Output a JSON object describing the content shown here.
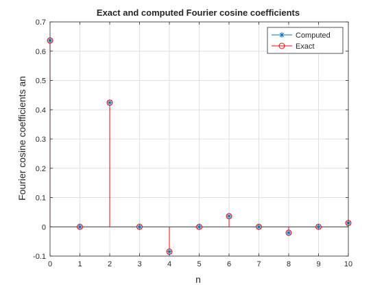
{
  "chart_data": {
    "type": "stem",
    "title": "Exact and computed Fourier cosine coefficients",
    "xlabel": "n",
    "ylabel": "Fourier cosine coefficients an",
    "xlim": [
      0,
      10
    ],
    "ylim": [
      -0.1,
      0.7
    ],
    "xticks": [
      "0",
      "1",
      "2",
      "3",
      "4",
      "5",
      "6",
      "7",
      "8",
      "9",
      "10"
    ],
    "yticks": [
      "-0.1",
      "0",
      "0.1",
      "0.2",
      "0.3",
      "0.4",
      "0.5",
      "0.6",
      "0.7"
    ],
    "grid": true,
    "legend_position": "top-right",
    "x": [
      0,
      1,
      2,
      3,
      4,
      5,
      6,
      7,
      8,
      9,
      10
    ],
    "series": [
      {
        "name": "Computed",
        "marker": "asterisk",
        "color": "#0072BD",
        "values": [
          0.6366,
          0,
          0.4244,
          0,
          -0.0849,
          0,
          0.0364,
          0,
          -0.0202,
          0,
          0.0129
        ]
      },
      {
        "name": "Exact",
        "marker": "circle",
        "color": "#FF0000",
        "values": [
          0.6366,
          0,
          0.4244,
          0,
          -0.0849,
          0,
          0.0364,
          0,
          -0.0202,
          0,
          0.0129
        ]
      }
    ]
  }
}
